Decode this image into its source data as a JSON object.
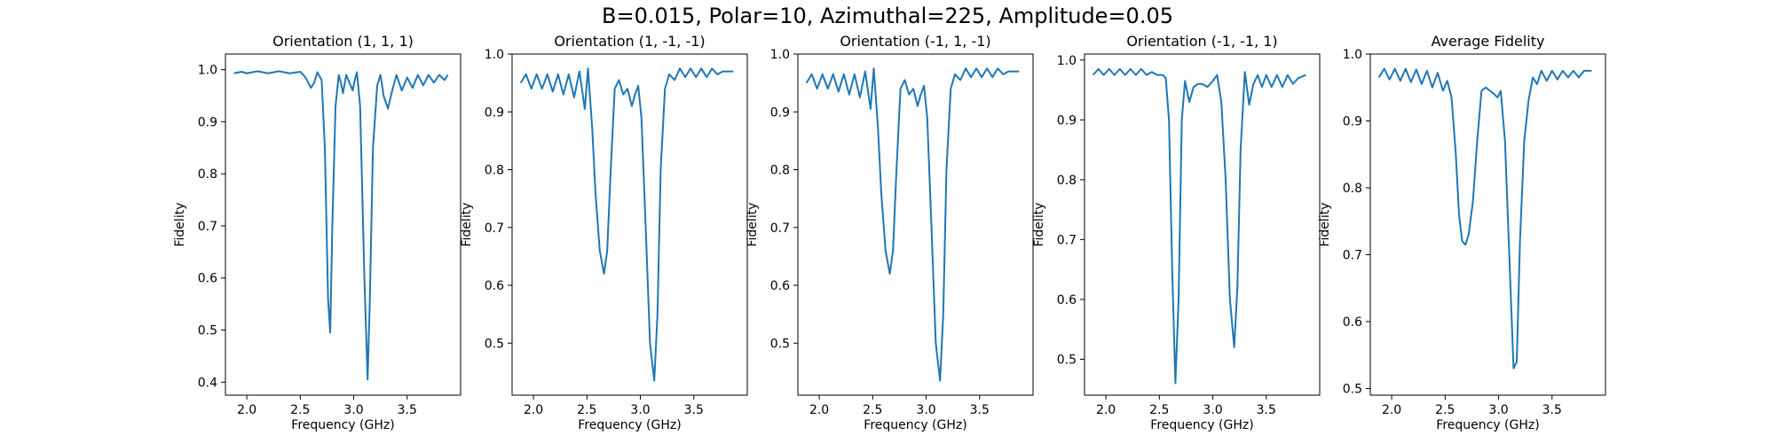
{
  "figure_title": "B=0.015, Polar=10, Azimuthal=225, Amplitude=0.05",
  "line_color": "#1f77b4",
  "chart_data": [
    {
      "type": "line",
      "title": "Orientation (1, 1, 1)",
      "xlabel": "Frequency (GHz)",
      "ylabel": "Fidelity",
      "xlim": [
        1.8,
        4.0
      ],
      "ylim": [
        0.375,
        1.03
      ],
      "xticks": [
        2.0,
        2.5,
        3.0,
        3.5
      ],
      "xtick_labels": [
        "2.0",
        "2.5",
        "3.0",
        "3.5"
      ],
      "yticks": [
        0.4,
        0.5,
        0.6,
        0.7,
        0.8,
        0.9,
        1.0
      ],
      "ytick_labels": [
        "0.4",
        "0.5",
        "0.6",
        "0.7",
        "0.8",
        "0.9",
        "1.0"
      ],
      "x": [
        1.88,
        1.95,
        2.0,
        2.1,
        2.2,
        2.3,
        2.4,
        2.5,
        2.55,
        2.6,
        2.63,
        2.66,
        2.7,
        2.73,
        2.76,
        2.78,
        2.8,
        2.83,
        2.86,
        2.88,
        2.9,
        2.93,
        2.96,
        2.99,
        3.01,
        3.03,
        3.06,
        3.1,
        3.13,
        3.15,
        3.18,
        3.22,
        3.25,
        3.28,
        3.32,
        3.36,
        3.4,
        3.45,
        3.5,
        3.55,
        3.6,
        3.65,
        3.7,
        3.75,
        3.8,
        3.85,
        3.88
      ],
      "y": [
        0.993,
        0.996,
        0.993,
        0.997,
        0.993,
        0.997,
        0.993,
        0.996,
        0.985,
        0.965,
        0.975,
        0.995,
        0.98,
        0.85,
        0.56,
        0.495,
        0.7,
        0.93,
        0.99,
        0.975,
        0.955,
        0.99,
        0.975,
        0.96,
        0.98,
        0.995,
        0.93,
        0.6,
        0.405,
        0.55,
        0.85,
        0.97,
        0.99,
        0.95,
        0.925,
        0.96,
        0.99,
        0.96,
        0.985,
        0.965,
        0.99,
        0.97,
        0.99,
        0.975,
        0.99,
        0.98,
        0.99
      ]
    },
    {
      "type": "line",
      "title": "Orientation (1, -1, -1)",
      "xlabel": "Frequency (GHz)",
      "ylabel": "Fidelity",
      "xlim": [
        1.8,
        4.0
      ],
      "ylim": [
        0.41,
        1.0
      ],
      "xticks": [
        2.0,
        2.5,
        3.0,
        3.5
      ],
      "xtick_labels": [
        "2.0",
        "2.5",
        "3.0",
        "3.5"
      ],
      "yticks": [
        0.5,
        0.6,
        0.7,
        0.8,
        0.9,
        1.0
      ],
      "ytick_labels": [
        "0.5",
        "0.6",
        "0.7",
        "0.8",
        "0.9",
        "1.0"
      ],
      "x": [
        1.88,
        1.93,
        1.98,
        2.03,
        2.08,
        2.13,
        2.18,
        2.23,
        2.28,
        2.33,
        2.38,
        2.43,
        2.48,
        2.51,
        2.55,
        2.58,
        2.62,
        2.66,
        2.69,
        2.72,
        2.76,
        2.8,
        2.84,
        2.88,
        2.92,
        2.95,
        2.98,
        3.01,
        3.05,
        3.09,
        3.13,
        3.16,
        3.19,
        3.23,
        3.27,
        3.32,
        3.37,
        3.42,
        3.47,
        3.52,
        3.57,
        3.62,
        3.67,
        3.72,
        3.77,
        3.82,
        3.87
      ],
      "y": [
        0.95,
        0.965,
        0.94,
        0.965,
        0.94,
        0.965,
        0.935,
        0.965,
        0.93,
        0.965,
        0.925,
        0.97,
        0.905,
        0.975,
        0.87,
        0.76,
        0.66,
        0.62,
        0.66,
        0.79,
        0.94,
        0.955,
        0.93,
        0.94,
        0.91,
        0.93,
        0.945,
        0.89,
        0.7,
        0.5,
        0.435,
        0.55,
        0.8,
        0.94,
        0.965,
        0.955,
        0.975,
        0.96,
        0.975,
        0.96,
        0.975,
        0.96,
        0.975,
        0.965,
        0.97,
        0.97,
        0.97
      ]
    },
    {
      "type": "line",
      "title": "Orientation (-1, 1, -1)",
      "xlabel": "Frequency (GHz)",
      "ylabel": "Fidelity",
      "xlim": [
        1.8,
        4.0
      ],
      "ylim": [
        0.41,
        1.0
      ],
      "xticks": [
        2.0,
        2.5,
        3.0,
        3.5
      ],
      "xtick_labels": [
        "2.0",
        "2.5",
        "3.0",
        "3.5"
      ],
      "yticks": [
        0.5,
        0.6,
        0.7,
        0.8,
        0.9,
        1.0
      ],
      "ytick_labels": [
        "0.5",
        "0.6",
        "0.7",
        "0.8",
        "0.9",
        "1.0"
      ],
      "x": [
        1.88,
        1.93,
        1.98,
        2.03,
        2.08,
        2.13,
        2.18,
        2.23,
        2.28,
        2.33,
        2.38,
        2.43,
        2.48,
        2.51,
        2.55,
        2.58,
        2.62,
        2.66,
        2.69,
        2.72,
        2.76,
        2.8,
        2.84,
        2.88,
        2.92,
        2.95,
        2.98,
        3.01,
        3.05,
        3.09,
        3.13,
        3.16,
        3.19,
        3.23,
        3.27,
        3.32,
        3.37,
        3.42,
        3.47,
        3.52,
        3.57,
        3.62,
        3.67,
        3.72,
        3.77,
        3.82,
        3.87
      ],
      "y": [
        0.95,
        0.965,
        0.94,
        0.965,
        0.94,
        0.965,
        0.935,
        0.965,
        0.93,
        0.965,
        0.925,
        0.97,
        0.905,
        0.975,
        0.87,
        0.76,
        0.66,
        0.62,
        0.66,
        0.79,
        0.94,
        0.955,
        0.93,
        0.94,
        0.91,
        0.93,
        0.945,
        0.89,
        0.7,
        0.5,
        0.435,
        0.55,
        0.8,
        0.94,
        0.965,
        0.955,
        0.975,
        0.96,
        0.975,
        0.96,
        0.975,
        0.96,
        0.975,
        0.965,
        0.97,
        0.97,
        0.97
      ]
    },
    {
      "type": "line",
      "title": "Orientation (-1, -1, 1)",
      "xlabel": "Frequency (GHz)",
      "ylabel": "Fidelity",
      "xlim": [
        1.8,
        4.0
      ],
      "ylim": [
        0.44,
        1.01
      ],
      "xticks": [
        2.0,
        2.5,
        3.0,
        3.5
      ],
      "xtick_labels": [
        "2.0",
        "2.5",
        "3.0",
        "3.5"
      ],
      "yticks": [
        0.5,
        0.6,
        0.7,
        0.8,
        0.9,
        1.0
      ],
      "ytick_labels": [
        "0.5",
        "0.6",
        "0.7",
        "0.8",
        "0.9",
        "1.0"
      ],
      "x": [
        1.88,
        1.93,
        1.98,
        2.03,
        2.08,
        2.13,
        2.18,
        2.23,
        2.28,
        2.33,
        2.38,
        2.43,
        2.48,
        2.53,
        2.56,
        2.59,
        2.62,
        2.65,
        2.68,
        2.71,
        2.74,
        2.78,
        2.82,
        2.86,
        2.9,
        2.95,
        3.0,
        3.04,
        3.08,
        3.12,
        3.16,
        3.2,
        3.23,
        3.26,
        3.3,
        3.34,
        3.38,
        3.42,
        3.46,
        3.5,
        3.55,
        3.6,
        3.65,
        3.7,
        3.75,
        3.8,
        3.87
      ],
      "y": [
        0.975,
        0.985,
        0.975,
        0.985,
        0.975,
        0.985,
        0.975,
        0.985,
        0.975,
        0.985,
        0.975,
        0.98,
        0.975,
        0.975,
        0.97,
        0.9,
        0.65,
        0.46,
        0.6,
        0.9,
        0.965,
        0.93,
        0.955,
        0.96,
        0.96,
        0.955,
        0.965,
        0.975,
        0.93,
        0.8,
        0.6,
        0.52,
        0.62,
        0.85,
        0.98,
        0.925,
        0.96,
        0.975,
        0.955,
        0.975,
        0.955,
        0.975,
        0.955,
        0.975,
        0.96,
        0.97,
        0.975
      ]
    },
    {
      "type": "line",
      "title": "Average Fidelity",
      "xlabel": "Frequency (GHz)",
      "ylabel": "Fidelity",
      "xlim": [
        1.8,
        4.0
      ],
      "ylim": [
        0.49,
        1.0
      ],
      "xticks": [
        2.0,
        2.5,
        3.0,
        3.5
      ],
      "xtick_labels": [
        "2.0",
        "2.5",
        "3.0",
        "3.5"
      ],
      "yticks": [
        0.5,
        0.6,
        0.7,
        0.8,
        0.9,
        1.0
      ],
      "ytick_labels": [
        "0.5",
        "0.6",
        "0.7",
        "0.8",
        "0.9",
        "1.0"
      ],
      "x": [
        1.88,
        1.93,
        1.98,
        2.03,
        2.08,
        2.13,
        2.18,
        2.23,
        2.28,
        2.33,
        2.38,
        2.43,
        2.48,
        2.52,
        2.56,
        2.6,
        2.63,
        2.66,
        2.69,
        2.72,
        2.76,
        2.8,
        2.84,
        2.88,
        2.92,
        2.96,
        2.99,
        3.02,
        3.06,
        3.1,
        3.14,
        3.17,
        3.2,
        3.24,
        3.28,
        3.32,
        3.36,
        3.4,
        3.45,
        3.5,
        3.55,
        3.6,
        3.65,
        3.7,
        3.75,
        3.8,
        3.87
      ],
      "y": [
        0.965,
        0.978,
        0.962,
        0.978,
        0.96,
        0.978,
        0.958,
        0.977,
        0.955,
        0.975,
        0.95,
        0.972,
        0.945,
        0.96,
        0.935,
        0.85,
        0.76,
        0.72,
        0.715,
        0.73,
        0.78,
        0.87,
        0.945,
        0.95,
        0.945,
        0.94,
        0.935,
        0.945,
        0.87,
        0.7,
        0.53,
        0.54,
        0.72,
        0.87,
        0.93,
        0.965,
        0.955,
        0.975,
        0.96,
        0.975,
        0.962,
        0.975,
        0.965,
        0.975,
        0.965,
        0.975,
        0.975
      ]
    }
  ]
}
